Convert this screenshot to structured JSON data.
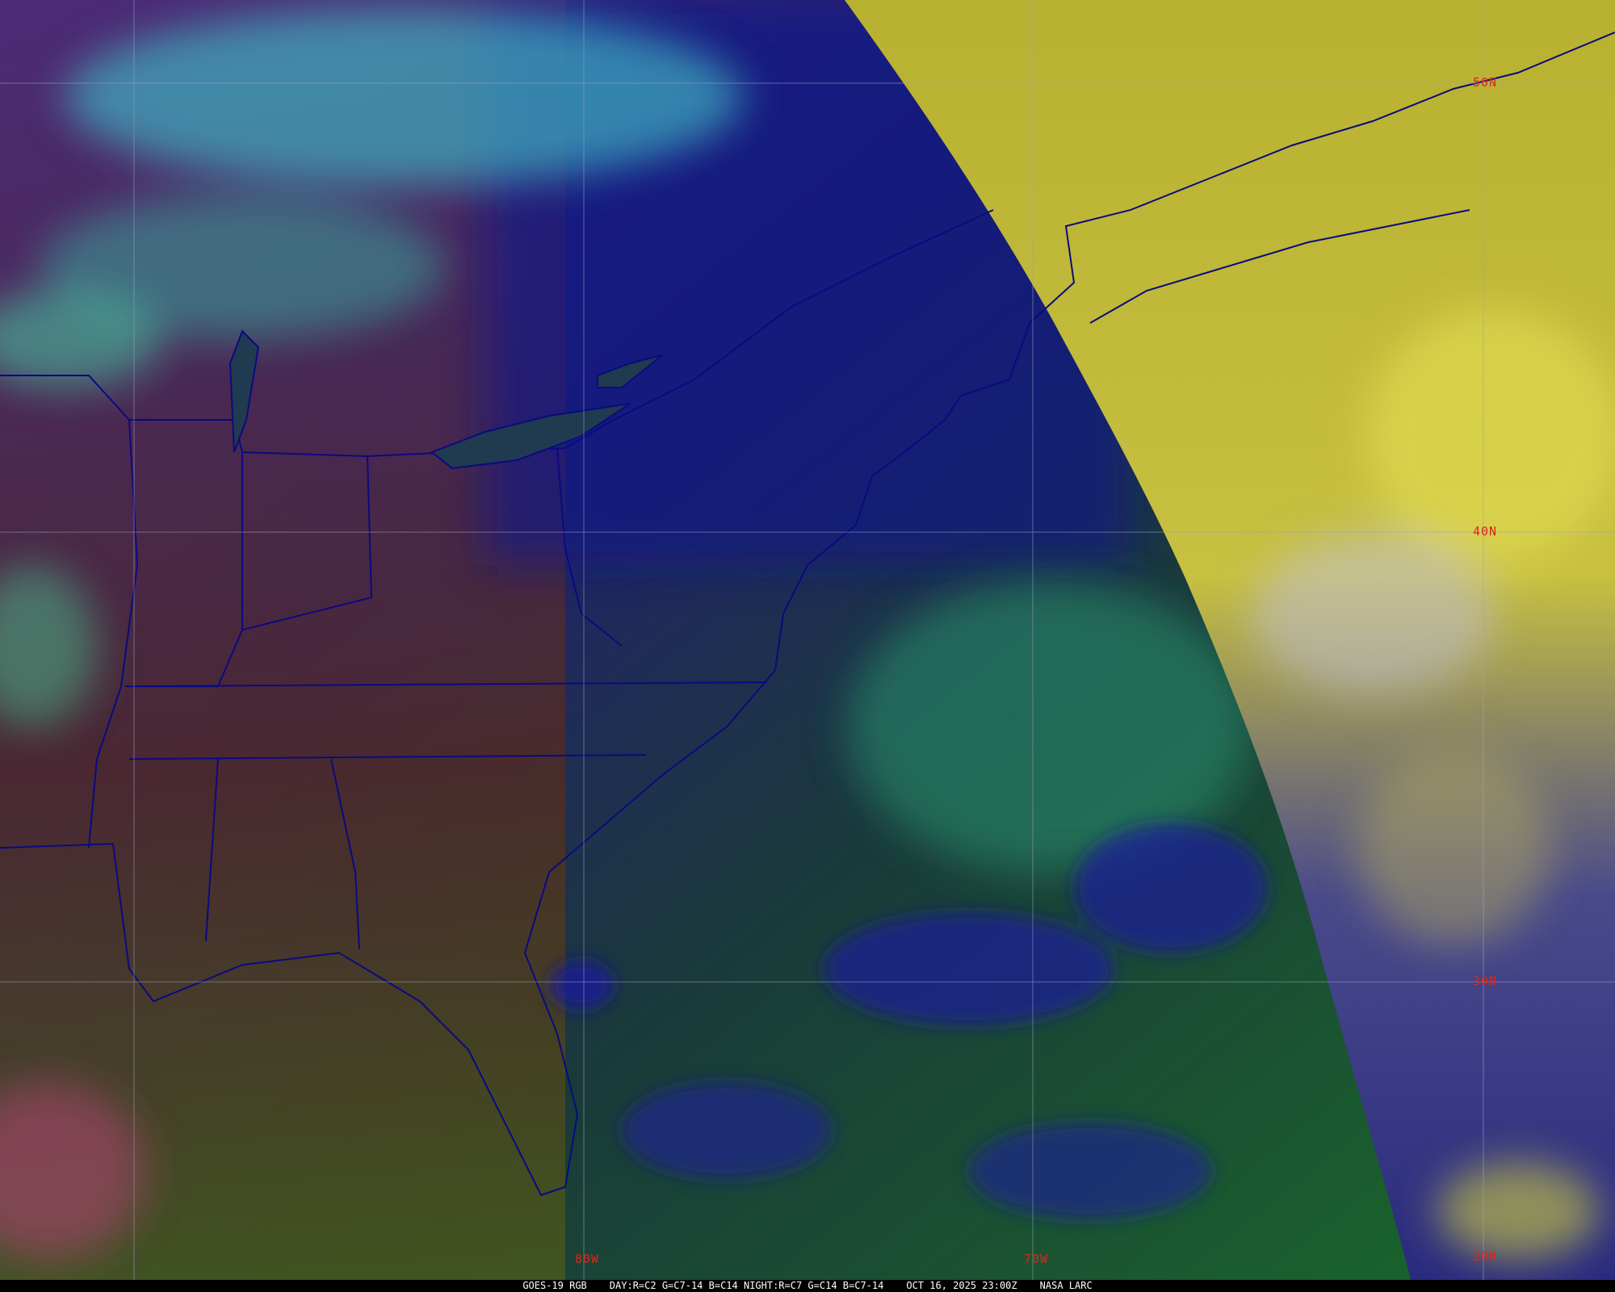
{
  "caption": {
    "satellite": "GOES-19 RGB",
    "recipe": "DAY:R=C2 G=C7-14 B=C14 NIGHT:R=C7 G=C14 B=C7-14",
    "datetime": "OCT 16, 2025 23:00Z",
    "source": "NASA LARC"
  },
  "grid_labels": {
    "lat": [
      "50N",
      "40N",
      "30N",
      "20N"
    ],
    "lon": [
      "80W",
      "70W"
    ]
  },
  "colors": {
    "label": "#d42a1e",
    "borders": "#0a0a80",
    "grid": "#a0a0c0",
    "day_side": "#b8b030",
    "night_ocean": "#1a6a2a",
    "night_land": "#2a2a70"
  }
}
